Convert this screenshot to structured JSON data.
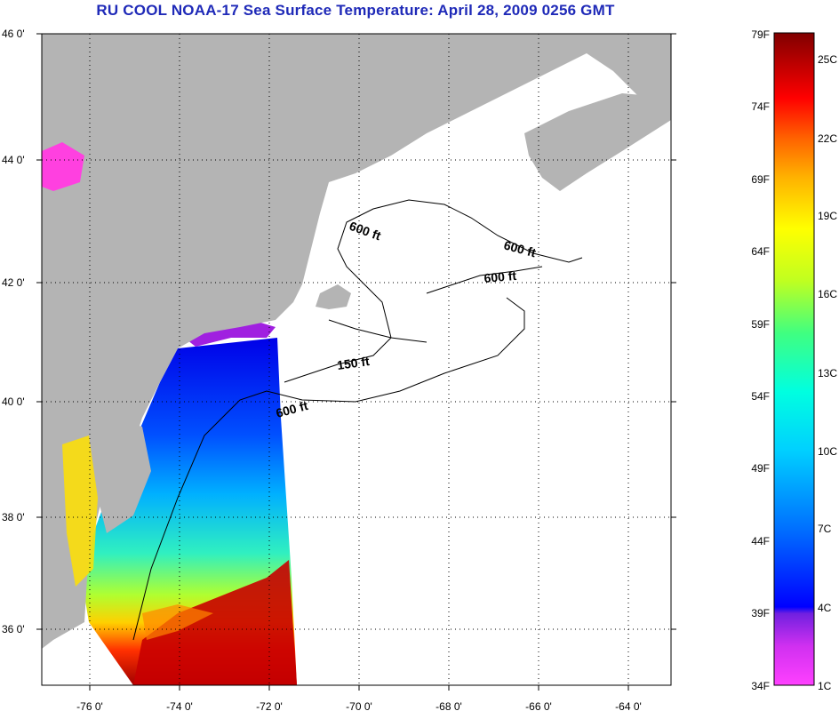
{
  "title": "RU COOL  NOAA-17  Sea Surface Temperature:  April 28, 2009 0256 GMT",
  "map": {
    "lat_labels": [
      "46 0'",
      "44 0'",
      "42 0'",
      "40 0'",
      "38 0'",
      "36 0'"
    ],
    "lon_labels": [
      "-76 0'",
      "-74 0'",
      "-72 0'",
      "-70 0'",
      "-68 0'",
      "-66 0'",
      "-64 0'"
    ],
    "lat_range": [
      35,
      46
    ],
    "lon_range": [
      -77,
      -63
    ],
    "contour_labels": [
      "600 ft",
      "600 ft",
      "600 ft",
      "150 ft",
      "600 ft"
    ],
    "land_color": "#b4b4b4",
    "grid": "dotted"
  },
  "colorbar": {
    "fahrenheit_labels": [
      "79F",
      "74F",
      "69F",
      "64F",
      "59F",
      "54F",
      "49F",
      "44F",
      "39F",
      "34F"
    ],
    "celsius_labels": [
      "25C",
      "22C",
      "19C",
      "16C",
      "13C",
      "10C",
      "7C",
      "4C",
      "1C"
    ],
    "colors": [
      "#ff40ff",
      "#8020d0",
      "#0000ff",
      "#00a0ff",
      "#00ffff",
      "#40ff80",
      "#ffff00",
      "#ff8000",
      "#ff0000",
      "#800000"
    ]
  }
}
